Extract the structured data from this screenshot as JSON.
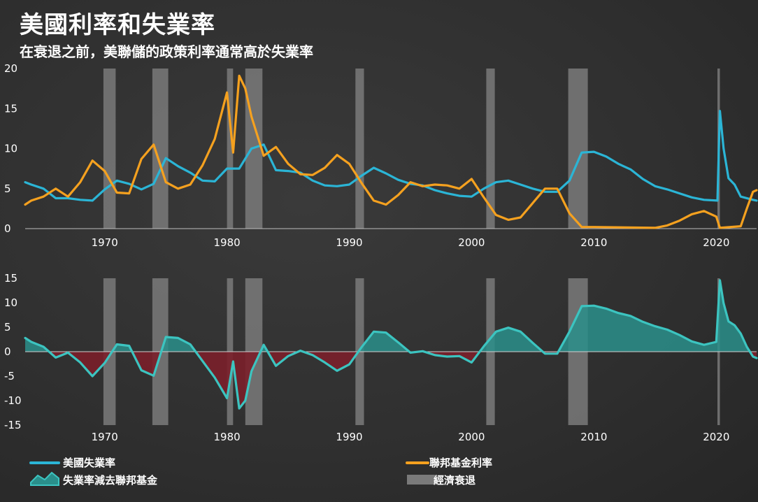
{
  "title": "美國利率和失業率",
  "subtitle": "在衰退之前，美聯儲的政策利率通常高於失業率",
  "colors": {
    "unemployment": "#2bb5d6",
    "fed_funds": "#f5a11f",
    "spread_line": "#3cc4c0",
    "spread_pos_fill": "#2a8f8b",
    "spread_neg_fill": "#7a1f2a",
    "recession": "#7a7a7a"
  },
  "legend": {
    "unemployment": "美國失業率",
    "fed_funds": "聯邦基金利率",
    "spread": "失業率減去聯邦基金",
    "recession": "經濟衰退"
  },
  "chart_data": [
    {
      "type": "line",
      "x_ticks": [
        "1970",
        "1980",
        "1990",
        "2000",
        "2010",
        "2020"
      ],
      "y_ticks": [
        "0",
        "5",
        "10",
        "15",
        "20"
      ],
      "xlim": [
        1963.5,
        2023.3
      ],
      "ylim": [
        0,
        20
      ],
      "recessions": [
        [
          1969.9,
          1970.9
        ],
        [
          1973.9,
          1975.2
        ],
        [
          1980.0,
          1980.5
        ],
        [
          1981.5,
          1982.9
        ],
        [
          1990.5,
          1991.2
        ],
        [
          2001.2,
          2001.9
        ],
        [
          2007.9,
          2009.5
        ],
        [
          2020.1,
          2020.3
        ]
      ],
      "series": [
        {
          "name": "美國失業率",
          "key": "unemployment",
          "points": [
            [
              1963.5,
              5.8
            ],
            [
              1964,
              5.5
            ],
            [
              1965,
              5.0
            ],
            [
              1966,
              3.8
            ],
            [
              1967,
              3.8
            ],
            [
              1968,
              3.6
            ],
            [
              1969,
              3.5
            ],
            [
              1970,
              4.9
            ],
            [
              1971,
              6.0
            ],
            [
              1972,
              5.6
            ],
            [
              1973,
              4.9
            ],
            [
              1974,
              5.6
            ],
            [
              1975,
              8.8
            ],
            [
              1976,
              7.8
            ],
            [
              1977,
              7.0
            ],
            [
              1978,
              6.0
            ],
            [
              1979,
              5.9
            ],
            [
              1980,
              7.5
            ],
            [
              1981,
              7.5
            ],
            [
              1982,
              10.0
            ],
            [
              1983,
              10.5
            ],
            [
              1984,
              7.3
            ],
            [
              1985,
              7.2
            ],
            [
              1986,
              7.0
            ],
            [
              1987,
              6.0
            ],
            [
              1988,
              5.4
            ],
            [
              1989,
              5.3
            ],
            [
              1990,
              5.5
            ],
            [
              1991,
              6.6
            ],
            [
              1992,
              7.6
            ],
            [
              1993,
              6.9
            ],
            [
              1994,
              6.1
            ],
            [
              1995,
              5.6
            ],
            [
              1996,
              5.4
            ],
            [
              1997,
              4.8
            ],
            [
              1998,
              4.4
            ],
            [
              1999,
              4.1
            ],
            [
              2000,
              4.0
            ],
            [
              2001,
              5.0
            ],
            [
              2002,
              5.8
            ],
            [
              2003,
              6.0
            ],
            [
              2004,
              5.5
            ],
            [
              2005,
              5.0
            ],
            [
              2006,
              4.6
            ],
            [
              2007,
              4.6
            ],
            [
              2008,
              6.0
            ],
            [
              2009,
              9.5
            ],
            [
              2010,
              9.6
            ],
            [
              2011,
              9.0
            ],
            [
              2012,
              8.1
            ],
            [
              2013,
              7.4
            ],
            [
              2014,
              6.2
            ],
            [
              2015,
              5.3
            ],
            [
              2016,
              4.9
            ],
            [
              2017,
              4.4
            ],
            [
              2018,
              3.9
            ],
            [
              2019,
              3.6
            ],
            [
              2020.1,
              3.5
            ],
            [
              2020.3,
              14.7
            ],
            [
              2020.6,
              10.0
            ],
            [
              2021,
              6.3
            ],
            [
              2021.5,
              5.5
            ],
            [
              2022,
              4.0
            ],
            [
              2023,
              3.6
            ],
            [
              2023.3,
              3.5
            ]
          ]
        },
        {
          "name": "聯邦基金利率",
          "key": "fed_funds",
          "points": [
            [
              1963.5,
              3.0
            ],
            [
              1964,
              3.5
            ],
            [
              1965,
              4.0
            ],
            [
              1966,
              5.0
            ],
            [
              1967,
              4.0
            ],
            [
              1968,
              5.8
            ],
            [
              1969,
              8.5
            ],
            [
              1970,
              7.2
            ],
            [
              1971,
              4.5
            ],
            [
              1972,
              4.4
            ],
            [
              1973,
              8.7
            ],
            [
              1974,
              10.5
            ],
            [
              1975,
              5.8
            ],
            [
              1976,
              5.0
            ],
            [
              1977,
              5.5
            ],
            [
              1978,
              7.9
            ],
            [
              1979,
              11.2
            ],
            [
              1980,
              17.0
            ],
            [
              1980.5,
              9.5
            ],
            [
              1981,
              19.1
            ],
            [
              1981.5,
              17.5
            ],
            [
              1982,
              14.0
            ],
            [
              1983,
              9.1
            ],
            [
              1984,
              10.2
            ],
            [
              1985,
              8.1
            ],
            [
              1986,
              6.8
            ],
            [
              1987,
              6.7
            ],
            [
              1988,
              7.6
            ],
            [
              1989,
              9.2
            ],
            [
              1990,
              8.1
            ],
            [
              1991,
              5.7
            ],
            [
              1992,
              3.5
            ],
            [
              1993,
              3.0
            ],
            [
              1994,
              4.2
            ],
            [
              1995,
              5.8
            ],
            [
              1996,
              5.3
            ],
            [
              1997,
              5.5
            ],
            [
              1998,
              5.4
            ],
            [
              1999,
              5.0
            ],
            [
              2000,
              6.2
            ],
            [
              2001,
              3.9
            ],
            [
              2002,
              1.7
            ],
            [
              2003,
              1.1
            ],
            [
              2004,
              1.4
            ],
            [
              2005,
              3.2
            ],
            [
              2006,
              5.0
            ],
            [
              2007,
              5.0
            ],
            [
              2008,
              1.9
            ],
            [
              2009,
              0.2
            ],
            [
              2010,
              0.2
            ],
            [
              2015,
              0.1
            ],
            [
              2016,
              0.4
            ],
            [
              2017,
              1.0
            ],
            [
              2018,
              1.8
            ],
            [
              2019,
              2.2
            ],
            [
              2020,
              1.5
            ],
            [
              2020.3,
              0.1
            ],
            [
              2022,
              0.3
            ],
            [
              2022.5,
              2.5
            ],
            [
              2023,
              4.6
            ],
            [
              2023.3,
              4.8
            ]
          ]
        }
      ]
    },
    {
      "type": "area",
      "x_ticks": [
        "1970",
        "1980",
        "1990",
        "2000",
        "2010",
        "2020"
      ],
      "y_ticks": [
        "15",
        "10",
        "5",
        "0",
        "-5",
        "-10",
        "-15"
      ],
      "xlim": [
        1963.5,
        2023.3
      ],
      "ylim": [
        -15,
        15
      ],
      "recessions": [
        [
          1969.9,
          1970.9
        ],
        [
          1973.9,
          1975.2
        ],
        [
          1980.0,
          1980.5
        ],
        [
          1981.5,
          1982.9
        ],
        [
          1990.5,
          1991.2
        ],
        [
          2001.2,
          2001.9
        ],
        [
          2007.9,
          2009.5
        ],
        [
          2020.1,
          2020.3
        ]
      ],
      "series": [
        {
          "name": "失業率減去聯邦基金",
          "key": "spread",
          "points": [
            [
              1963.5,
              2.8
            ],
            [
              1964,
              2.0
            ],
            [
              1965,
              1.0
            ],
            [
              1966,
              -1.2
            ],
            [
              1967,
              -0.2
            ],
            [
              1968,
              -2.2
            ],
            [
              1969,
              -5.0
            ],
            [
              1970,
              -2.3
            ],
            [
              1971,
              1.5
            ],
            [
              1972,
              1.2
            ],
            [
              1973,
              -3.8
            ],
            [
              1974,
              -4.9
            ],
            [
              1975,
              3.0
            ],
            [
              1976,
              2.8
            ],
            [
              1977,
              1.5
            ],
            [
              1978,
              -1.9
            ],
            [
              1979,
              -5.3
            ],
            [
              1980,
              -9.5
            ],
            [
              1980.5,
              -2.0
            ],
            [
              1981,
              -11.6
            ],
            [
              1981.5,
              -10.0
            ],
            [
              1982,
              -4.0
            ],
            [
              1983,
              1.4
            ],
            [
              1984,
              -2.9
            ],
            [
              1985,
              -0.9
            ],
            [
              1986,
              0.2
            ],
            [
              1987,
              -0.7
            ],
            [
              1988,
              -2.2
            ],
            [
              1989,
              -3.9
            ],
            [
              1990,
              -2.6
            ],
            [
              1991,
              0.9
            ],
            [
              1992,
              4.1
            ],
            [
              1993,
              3.9
            ],
            [
              1994,
              1.9
            ],
            [
              1995,
              -0.2
            ],
            [
              1996,
              0.1
            ],
            [
              1997,
              -0.7
            ],
            [
              1998,
              -1.0
            ],
            [
              1999,
              -0.9
            ],
            [
              2000,
              -2.2
            ],
            [
              2001,
              1.1
            ],
            [
              2002,
              4.1
            ],
            [
              2003,
              4.9
            ],
            [
              2004,
              4.1
            ],
            [
              2005,
              1.8
            ],
            [
              2006,
              -0.4
            ],
            [
              2007,
              -0.4
            ],
            [
              2008,
              4.1
            ],
            [
              2009,
              9.3
            ],
            [
              2010,
              9.4
            ],
            [
              2011,
              8.8
            ],
            [
              2012,
              7.9
            ],
            [
              2013,
              7.3
            ],
            [
              2014,
              6.1
            ],
            [
              2015,
              5.2
            ],
            [
              2016,
              4.5
            ],
            [
              2017,
              3.4
            ],
            [
              2018,
              2.1
            ],
            [
              2019,
              1.4
            ],
            [
              2020,
              2.0
            ],
            [
              2020.3,
              14.6
            ],
            [
              2020.6,
              9.9
            ],
            [
              2021,
              6.2
            ],
            [
              2021.5,
              5.4
            ],
            [
              2022,
              3.7
            ],
            [
              2022.5,
              1.0
            ],
            [
              2023,
              -1.0
            ],
            [
              2023.3,
              -1.3
            ]
          ]
        }
      ]
    }
  ]
}
